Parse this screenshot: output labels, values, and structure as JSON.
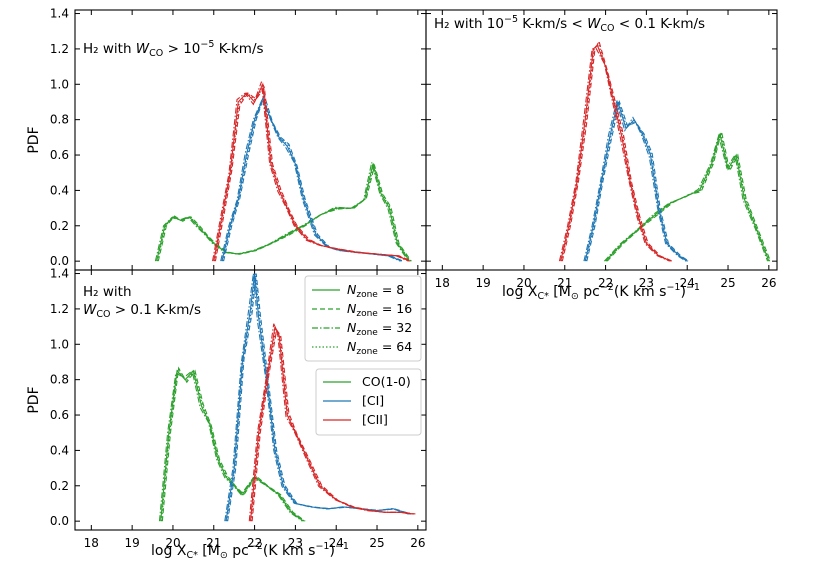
{
  "chart_data": {
    "type": "line",
    "x_label": "log X",
    "x_label_sub": "C*",
    "x_label_units": " [M",
    "x_label_sun": "⊙",
    "x_label_rest": " pc",
    "x_label_exp": "−2",
    "x_label_rest2": "(K km s",
    "x_label_exp2": "−1",
    "x_label_rest3": ")",
    "x_label_exp3": "−1",
    "y_label": "PDF",
    "xlim": [
      17.6,
      26.2
    ],
    "ylim": [
      -0.05,
      1.42
    ],
    "x_ticks": [
      18,
      19,
      20,
      21,
      22,
      23,
      24,
      25,
      26
    ],
    "y_ticks": [
      0.0,
      0.2,
      0.4,
      0.6,
      0.8,
      1.0,
      1.2,
      1.4
    ],
    "y_tick_labels": [
      "0.0",
      "0.2",
      "0.4",
      "0.6",
      "0.8",
      "1.0",
      "1.2",
      "1.4"
    ],
    "colors": {
      "CO": "#2ca02c",
      "CI": "#1f77b4",
      "CII": "#d62728"
    },
    "legend_nzone": {
      "title_prefix": "N",
      "title_sub": "zone",
      "entries": [
        {
          "value": "8",
          "style": "solid"
        },
        {
          "value": "16",
          "style": "dashed"
        },
        {
          "value": "32",
          "style": "dashdot"
        },
        {
          "value": "64",
          "style": "dotted"
        }
      ]
    },
    "legend_tracers": [
      {
        "label": "CO(1-0)",
        "key": "CO"
      },
      {
        "label": "[CI]",
        "key": "CI"
      },
      {
        "label": "[CII]",
        "key": "CII"
      }
    ],
    "panels": [
      {
        "id": "top-left",
        "title_lines": [
          "H₂ with W_CO > 10⁻⁵ K-km/s"
        ],
        "series": {
          "CO": {
            "x": [
              19.6,
              19.8,
              20.0,
              20.2,
              20.4,
              20.6,
              20.8,
              21.0,
              21.3,
              21.6,
              22.0,
              22.4,
              22.8,
              23.2,
              23.6,
              24.0,
              24.4,
              24.7,
              24.9,
              25.1,
              25.3,
              25.5,
              25.8
            ],
            "y": [
              0.0,
              0.2,
              0.25,
              0.23,
              0.25,
              0.2,
              0.15,
              0.1,
              0.05,
              0.04,
              0.06,
              0.1,
              0.15,
              0.2,
              0.26,
              0.3,
              0.3,
              0.35,
              0.55,
              0.38,
              0.3,
              0.1,
              0.0
            ]
          },
          "CI": {
            "x": [
              21.2,
              21.4,
              21.6,
              21.8,
              22.0,
              22.2,
              22.4,
              22.6,
              22.8,
              23.0,
              23.2,
              23.5,
              23.8,
              24.1,
              24.5,
              24.9,
              25.3,
              25.6
            ],
            "y": [
              0.0,
              0.2,
              0.35,
              0.6,
              0.8,
              0.92,
              0.8,
              0.7,
              0.65,
              0.55,
              0.35,
              0.15,
              0.08,
              0.06,
              0.05,
              0.04,
              0.03,
              0.0
            ]
          },
          "CII": {
            "x": [
              21.0,
              21.2,
              21.4,
              21.6,
              21.8,
              22.0,
              22.2,
              22.4,
              22.6,
              22.8,
              23.0,
              23.3,
              23.6,
              24.0,
              24.5,
              25.0,
              25.5,
              25.8
            ],
            "y": [
              0.0,
              0.25,
              0.5,
              0.9,
              0.95,
              0.9,
              1.0,
              0.55,
              0.4,
              0.3,
              0.2,
              0.12,
              0.09,
              0.07,
              0.05,
              0.04,
              0.03,
              0.0
            ]
          }
        }
      },
      {
        "id": "top-right",
        "title_lines": [
          "H₂ with 10⁻⁵ K-km/s < W_CO < 0.1 K-km/s"
        ],
        "series": {
          "CO": {
            "x": [
              22.0,
              22.4,
              22.8,
              23.2,
              23.6,
              24.0,
              24.3,
              24.6,
              24.8,
              25.0,
              25.2,
              25.4,
              25.7,
              26.0
            ],
            "y": [
              0.0,
              0.1,
              0.18,
              0.26,
              0.33,
              0.37,
              0.4,
              0.55,
              0.72,
              0.52,
              0.6,
              0.35,
              0.18,
              0.0
            ]
          },
          "CI": {
            "x": [
              21.5,
              21.7,
              21.9,
              22.1,
              22.3,
              22.5,
              22.7,
              22.9,
              23.1,
              23.3,
              23.5,
              23.8,
              24.0
            ],
            "y": [
              0.0,
              0.2,
              0.45,
              0.7,
              0.9,
              0.75,
              0.8,
              0.72,
              0.6,
              0.3,
              0.1,
              0.03,
              0.0
            ]
          },
          "CII": {
            "x": [
              20.9,
              21.1,
              21.3,
              21.5,
              21.7,
              21.8,
              22.0,
              22.2,
              22.4,
              22.6,
              22.8,
              23.0,
              23.3,
              23.6
            ],
            "y": [
              0.0,
              0.2,
              0.45,
              0.8,
              1.2,
              1.22,
              1.1,
              0.9,
              0.7,
              0.45,
              0.25,
              0.1,
              0.03,
              0.0
            ]
          }
        }
      },
      {
        "id": "bottom-left",
        "title_lines": [
          "H₂ with",
          "W_CO > 0.1 K-km/s"
        ],
        "series": {
          "CO": {
            "x": [
              19.7,
              19.9,
              20.1,
              20.3,
              20.5,
              20.7,
              20.9,
              21.1,
              21.3,
              21.5,
              21.7,
              22.0,
              22.3,
              22.6,
              22.9,
              23.2
            ],
            "y": [
              0.0,
              0.5,
              0.85,
              0.8,
              0.85,
              0.65,
              0.55,
              0.35,
              0.25,
              0.2,
              0.15,
              0.25,
              0.2,
              0.15,
              0.05,
              0.0
            ]
          },
          "CI": {
            "x": [
              21.3,
              21.5,
              21.7,
              21.9,
              22.0,
              22.1,
              22.3,
              22.5,
              22.7,
              23.0,
              23.4,
              23.8,
              24.2,
              24.6,
              25.0,
              25.4,
              25.8
            ],
            "y": [
              0.0,
              0.3,
              0.9,
              1.2,
              1.4,
              1.15,
              0.8,
              0.4,
              0.2,
              0.1,
              0.08,
              0.07,
              0.08,
              0.07,
              0.06,
              0.07,
              0.04
            ]
          },
          "CII": {
            "x": [
              21.9,
              22.1,
              22.3,
              22.5,
              22.6,
              22.8,
              23.0,
              23.3,
              23.6,
              24.0,
              24.4,
              24.8,
              25.2,
              25.6,
              25.9
            ],
            "y": [
              0.0,
              0.5,
              0.8,
              1.1,
              1.05,
              0.6,
              0.5,
              0.35,
              0.2,
              0.12,
              0.08,
              0.06,
              0.05,
              0.05,
              0.04
            ]
          }
        }
      }
    ]
  }
}
